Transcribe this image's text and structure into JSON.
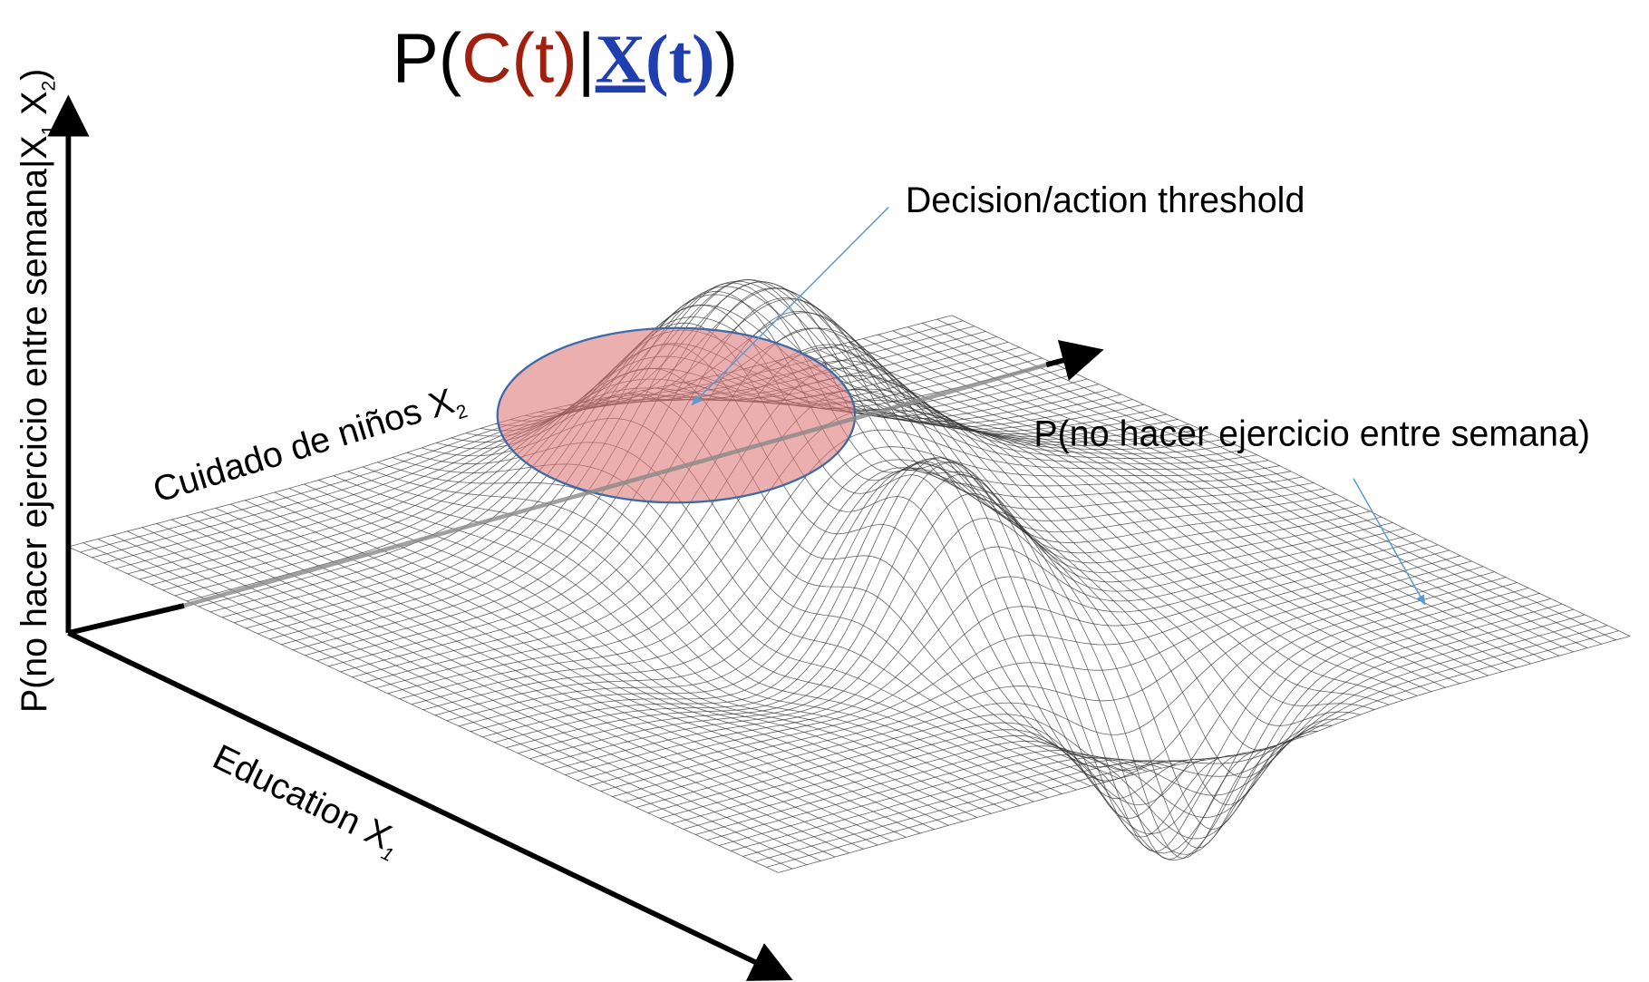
{
  "title": {
    "open": "P(",
    "condition": "C(t)",
    "separator": "|",
    "vector": "X",
    "vector_time": "(t)",
    "close": ")"
  },
  "y_axis_label": {
    "text": "P(no hacer ejercicio entre semana|X",
    "sub1": "1",
    "middle": " X",
    "sub2": "2",
    "end": ")"
  },
  "x1_axis_label": {
    "text": "Education X",
    "sub": "1"
  },
  "x2_axis_label": {
    "text": "Cuidado de niños X",
    "sub": "2"
  },
  "annotations": {
    "threshold": "Decision/action threshold",
    "surface": "P(no hacer ejercicio entre semana)"
  }
}
